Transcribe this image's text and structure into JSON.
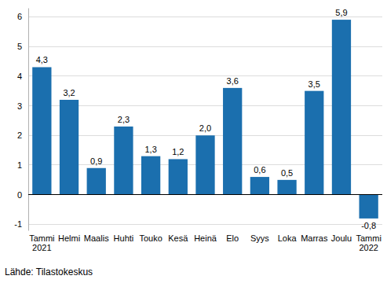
{
  "chart_data": {
    "type": "bar",
    "categories": [
      "Tammi 2021",
      "Helmi",
      "Maalis",
      "Huhti",
      "Touko",
      "Kesä",
      "Heinä",
      "Elo",
      "Syys",
      "Loka",
      "Marras",
      "Joulu",
      "Tammi 2022"
    ],
    "values": [
      4.3,
      3.2,
      0.9,
      2.3,
      1.3,
      1.2,
      2.0,
      3.6,
      0.6,
      0.5,
      3.5,
      5.9,
      -0.8
    ],
    "value_labels": [
      "4,3",
      "3,2",
      "0,9",
      "2,3",
      "1,3",
      "1,2",
      "2,0",
      "3,6",
      "0,6",
      "0,5",
      "3,5",
      "5,9",
      "-0,8"
    ],
    "color": "#1b6fae",
    "ylim": [
      -1.2,
      6.3
    ],
    "yticks": [
      -1,
      0,
      1,
      2,
      3,
      4,
      5,
      6
    ],
    "grid": true,
    "data_labels": true,
    "source": "Lähde: Tilastokeskus"
  }
}
